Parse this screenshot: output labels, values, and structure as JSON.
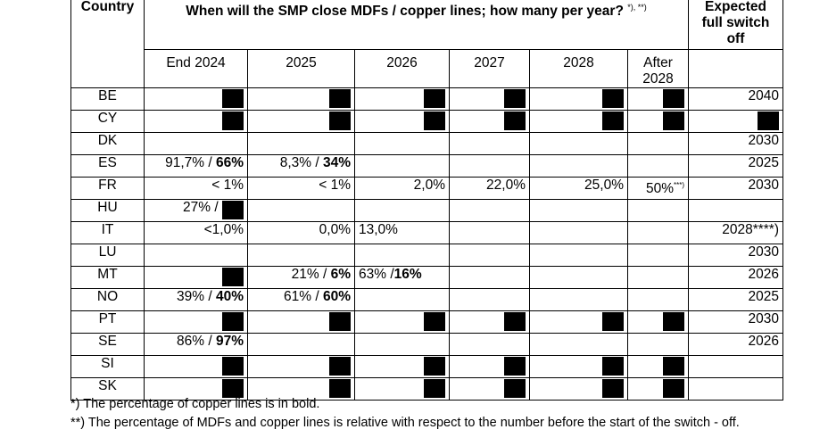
{
  "header": {
    "country": "Country",
    "title": "When will the SMP close MDFs / copper lines; how many per year?",
    "title_sup": "*), **)",
    "switch_off": [
      "Expected",
      "full switch",
      "off"
    ],
    "years": [
      "End 2024",
      "2025",
      "2026",
      "2027",
      "2028",
      "After 2028"
    ]
  },
  "rows": [
    {
      "country": "BE",
      "end2024": "",
      "y2025": "",
      "y2026": "",
      "y2027": "",
      "y2028": "",
      "after": "",
      "switchoff": "2040"
    },
    {
      "country": "CY",
      "end2024": "",
      "y2025": "",
      "y2026": "",
      "y2027": "",
      "y2028": "",
      "after": "",
      "switchoff": ""
    },
    {
      "country": "DK",
      "end2024": "",
      "y2025": "",
      "y2026": "",
      "y2027": "",
      "y2028": "",
      "after": "",
      "switchoff": "2030"
    },
    {
      "country": "ES",
      "end2024_a": "91,7% / ",
      "end2024_b": "66%",
      "y2025_a": "8,3% / ",
      "y2025_b": "34%",
      "switchoff": "2025"
    },
    {
      "country": "FR",
      "end2024": "< 1%",
      "y2025": "< 1%",
      "y2026": "2,0%",
      "y2027": "22,0%",
      "y2028": "25,0%",
      "after": "50%",
      "after_sup": "***)",
      "switchoff": "2030"
    },
    {
      "country": "HU",
      "end2024": "27% /",
      "switchoff": ""
    },
    {
      "country": "IT",
      "end2024": "<1,0%",
      "y2025": "0,0%",
      "y2026": "13,0%",
      "switchoff": "2028****)"
    },
    {
      "country": "LU",
      "switchoff": "2030"
    },
    {
      "country": "MT",
      "y2025_a": "21% / ",
      "y2025_b": "6%",
      "y2026_a": "63% /",
      "y2026_b": "16%",
      "switchoff": "2026"
    },
    {
      "country": "NO",
      "end2024_a": "39% / ",
      "end2024_b": "40%",
      "y2025_a": "61% / ",
      "y2025_b": "60%",
      "switchoff": "2025"
    },
    {
      "country": "PT",
      "switchoff": "2030"
    },
    {
      "country": "SE",
      "end2024_a": "86% / ",
      "end2024_b": "97%",
      "switchoff": "2026"
    },
    {
      "country": "SI",
      "switchoff": ""
    },
    {
      "country": "SK",
      "switchoff": ""
    }
  ],
  "footnotes": {
    "f1": "*) The percentage of copper lines is in bold.",
    "f2": "**) The percentage of MDFs and copper lines is relative with respect to the number before the start of the switch - off."
  }
}
